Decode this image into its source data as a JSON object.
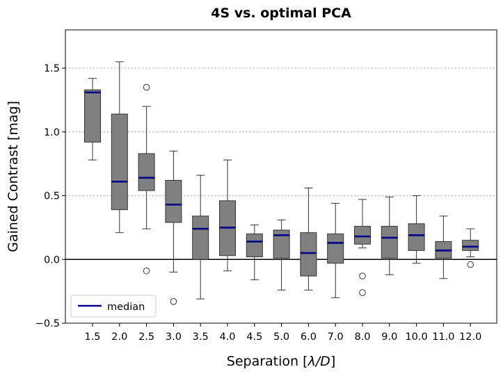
{
  "chart_data": {
    "type": "boxplot",
    "title": "4S vs. optimal PCA",
    "xlabel_main": "Separation [",
    "xlabel_symbol": "λ/D",
    "xlabel_end": "]",
    "ylabel": "Gained Contrast [mag]",
    "ylim": [
      -0.5,
      1.8
    ],
    "yticks": [
      -0.5,
      0.0,
      0.5,
      1.0,
      1.5
    ],
    "ytick_labels": [
      "−0.5",
      "0.0",
      "0.5",
      "1.0",
      "1.5"
    ],
    "grid_dotted_at": [
      0.5,
      1.0,
      1.5
    ],
    "zero_line": 0.0,
    "legend": {
      "label": "median",
      "placement": "lower-left"
    },
    "colors": {
      "box": "#808080",
      "median": "#00008b",
      "whisker": "#333333"
    },
    "categories": [
      "1.5",
      "2.0",
      "2.5",
      "3.0",
      "3.5",
      "4.0",
      "4.5",
      "5.0",
      "6.0",
      "7.0",
      "8.0",
      "9.0",
      "10.0",
      "11.0",
      "12.0"
    ],
    "boxes": [
      {
        "q1": 0.92,
        "median": 1.31,
        "q3": 1.33,
        "whislo": 0.78,
        "whishi": 1.42,
        "fliers": []
      },
      {
        "q1": 0.39,
        "median": 0.61,
        "q3": 1.14,
        "whislo": 0.21,
        "whishi": 1.55,
        "fliers": []
      },
      {
        "q1": 0.54,
        "median": 0.64,
        "q3": 0.83,
        "whislo": 0.24,
        "whishi": 1.2,
        "fliers": [
          1.35,
          -0.09
        ]
      },
      {
        "q1": 0.29,
        "median": 0.43,
        "q3": 0.62,
        "whislo": -0.1,
        "whishi": 0.85,
        "fliers": [
          -0.33
        ]
      },
      {
        "q1": 0.0,
        "median": 0.24,
        "q3": 0.34,
        "whislo": -0.31,
        "whishi": 0.66,
        "fliers": []
      },
      {
        "q1": 0.03,
        "median": 0.25,
        "q3": 0.46,
        "whislo": -0.09,
        "whishi": 0.78,
        "fliers": []
      },
      {
        "q1": 0.02,
        "median": 0.14,
        "q3": 0.2,
        "whislo": -0.16,
        "whishi": 0.27,
        "fliers": []
      },
      {
        "q1": 0.01,
        "median": 0.19,
        "q3": 0.23,
        "whislo": -0.24,
        "whishi": 0.31,
        "fliers": []
      },
      {
        "q1": -0.13,
        "median": 0.05,
        "q3": 0.21,
        "whislo": -0.24,
        "whishi": 0.56,
        "fliers": []
      },
      {
        "q1": -0.03,
        "median": 0.13,
        "q3": 0.2,
        "whislo": -0.3,
        "whishi": 0.44,
        "fliers": []
      },
      {
        "q1": 0.12,
        "median": 0.18,
        "q3": 0.26,
        "whislo": 0.09,
        "whishi": 0.47,
        "fliers": [
          -0.13,
          -0.26
        ]
      },
      {
        "q1": 0.01,
        "median": 0.17,
        "q3": 0.26,
        "whislo": -0.12,
        "whishi": 0.49,
        "fliers": []
      },
      {
        "q1": 0.07,
        "median": 0.19,
        "q3": 0.28,
        "whislo": -0.03,
        "whishi": 0.5,
        "fliers": []
      },
      {
        "q1": 0.01,
        "median": 0.07,
        "q3": 0.14,
        "whislo": -0.15,
        "whishi": 0.34,
        "fliers": []
      },
      {
        "q1": 0.07,
        "median": 0.1,
        "q3": 0.15,
        "whislo": 0.02,
        "whishi": 0.24,
        "fliers": [
          -0.04
        ]
      }
    ]
  }
}
